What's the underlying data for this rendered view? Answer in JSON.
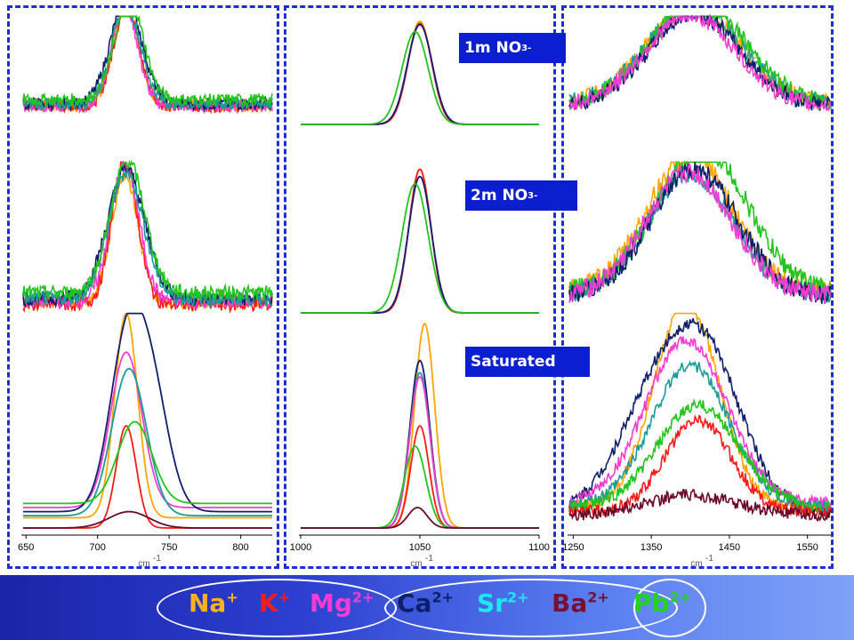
{
  "labels": {
    "box1_main": "1m NO",
    "box1_sub": "3",
    "box1_sup": "-",
    "box2_main": "2m NO",
    "box2_sub": "3",
    "box2_sup": "-",
    "box3": "Saturated"
  },
  "ions": [
    {
      "base": "Na",
      "charge": "+",
      "color": "#ffb21c"
    },
    {
      "base": "K",
      "charge": "+",
      "color": "#ff1a1a"
    },
    {
      "base": "Mg",
      "charge": "2+",
      "color": "#f33cd1"
    },
    {
      "base": "Ca",
      "charge": "2+",
      "color": "#0f1f6b"
    },
    {
      "base": "Sr",
      "charge": "2+",
      "color": "#1ee6f2"
    },
    {
      "base": "Ba",
      "charge": "2+",
      "color": "#7a1030"
    },
    {
      "base": "Pb",
      "charge": "2+",
      "color": "#22d41d"
    }
  ],
  "chart_data": [
    {
      "type": "line",
      "panel": "left",
      "xlabel": "cm",
      "xlabel_sup": "-1",
      "xlim": [
        648,
        822
      ],
      "xticks": [
        650,
        700,
        750,
        800
      ],
      "rows": [
        {
          "name": "1m NO3-",
          "series": [
            {
              "ion": "Na+",
              "color": "#ffa500",
              "center": 720,
              "width": 9,
              "amp": 1.0,
              "base": 0.18,
              "noise": 0.06
            },
            {
              "ion": "K+",
              "color": "#ff1a1a",
              "center": 720,
              "width": 9,
              "amp": 0.95,
              "base": 0.18,
              "noise": 0.06
            },
            {
              "ion": "Mg2+",
              "color": "#f33cd1",
              "center": 719,
              "width": 9,
              "amp": 0.98,
              "base": 0.18,
              "noise": 0.06
            },
            {
              "ion": "Ca2+",
              "color": "#0f1f6b",
              "center": 720,
              "width": 11,
              "amp": 1.0,
              "base": 0.2,
              "noise": 0.06
            },
            {
              "ion": "Sr2+",
              "color": "#1b9a9a",
              "center": 720,
              "width": 10,
              "amp": 0.95,
              "base": 0.2,
              "noise": 0.06
            },
            {
              "ion": "Pb2+",
              "color": "#22c41d",
              "center": 722,
              "width": 10,
              "amp": 0.98,
              "base": 0.24,
              "noise": 0.06
            }
          ]
        },
        {
          "name": "2m NO3-",
          "series": [
            {
              "ion": "Na+",
              "color": "#ffa500",
              "center": 719,
              "width": 9,
              "amp": 0.9,
              "base": 0.08,
              "noise": 0.05
            },
            {
              "ion": "K+",
              "color": "#ff1a1a",
              "center": 719,
              "width": 9,
              "amp": 1.0,
              "base": 0.06,
              "noise": 0.05
            },
            {
              "ion": "Mg2+",
              "color": "#f33cd1",
              "center": 719,
              "width": 10,
              "amp": 0.95,
              "base": 0.08,
              "noise": 0.05
            },
            {
              "ion": "Ca2+",
              "color": "#0f1f6b",
              "center": 720,
              "width": 13,
              "amp": 0.9,
              "base": 0.1,
              "noise": 0.05
            },
            {
              "ion": "Sr2+",
              "color": "#1b9a9a",
              "center": 720,
              "width": 12,
              "amp": 0.88,
              "base": 0.1,
              "noise": 0.05
            },
            {
              "ion": "Pb2+",
              "color": "#22c41d",
              "center": 721,
              "width": 12,
              "amp": 0.92,
              "base": 0.14,
              "noise": 0.05
            }
          ]
        },
        {
          "name": "Saturated",
          "series": [
            {
              "ion": "Na+",
              "color": "#ffa500",
              "center": 720,
              "width": 8,
              "amp": 1.0,
              "base": 0.05,
              "noise": 0.0
            },
            {
              "ion": "K+",
              "color": "#ff1a1a",
              "center": 720,
              "width": 7,
              "amp": 0.5,
              "base": 0.0,
              "noise": 0.0
            },
            {
              "ion": "Mg2+",
              "color": "#f33cd1",
              "center": 720,
              "width": 11,
              "amp": 0.76,
              "base": 0.1,
              "noise": 0.0
            },
            {
              "ion": "Ca2+",
              "color": "#0f1f6b",
              "center": 720,
              "width": 12,
              "amp": 0.78,
              "base": 0.08,
              "noise": 0.0,
              "center2": 738,
              "amp2": 0.55
            },
            {
              "ion": "Sr2+",
              "color": "#1b9a9a",
              "center": 722,
              "width": 12,
              "amp": 0.72,
              "base": 0.06,
              "noise": 0.0
            },
            {
              "ion": "Pb2+",
              "color": "#22c41d",
              "center": 726,
              "width": 12,
              "amp": 0.4,
              "base": 0.12,
              "noise": 0.0
            },
            {
              "ion": "Ba2+",
              "color": "#6a0a2a",
              "center": 722,
              "width": 14,
              "amp": 0.08,
              "base": 0.0,
              "noise": 0.0
            }
          ]
        }
      ]
    },
    {
      "type": "line",
      "panel": "middle",
      "xlabel": "cm",
      "xlabel_sup": "-1",
      "xlim": [
        1000,
        1100
      ],
      "xticks": [
        1000,
        1050,
        1100
      ],
      "rows": [
        {
          "name": "1m NO3-",
          "series": [
            {
              "ion": "Na+",
              "color": "#ffa500",
              "center": 1050,
              "width": 5,
              "amp": 1.0,
              "base": 0.0,
              "noise": 0.0
            },
            {
              "ion": "K+",
              "color": "#ff1a1a",
              "center": 1050,
              "width": 5,
              "amp": 0.98,
              "base": 0.0,
              "noise": 0.0
            },
            {
              "ion": "Mg2+",
              "color": "#f33cd1",
              "center": 1050,
              "width": 5.2,
              "amp": 0.97,
              "base": 0.0,
              "noise": 0.0
            },
            {
              "ion": "Ca2+",
              "color": "#0f1f6b",
              "center": 1050,
              "width": 5.2,
              "amp": 0.97,
              "base": 0.0,
              "noise": 0.0
            },
            {
              "ion": "Pb2+",
              "color": "#22c41d",
              "center": 1048,
              "width": 5.5,
              "amp": 0.9,
              "base": 0.0,
              "noise": 0.0
            }
          ]
        },
        {
          "name": "2m NO3-",
          "series": [
            {
              "ion": "Na+",
              "color": "#ffa500",
              "center": 1050,
              "width": 4.6,
              "amp": 1.0,
              "base": 0.0,
              "noise": 0.0
            },
            {
              "ion": "K+",
              "color": "#ff1a1a",
              "center": 1050,
              "width": 4.6,
              "amp": 1.0,
              "base": 0.0,
              "noise": 0.0
            },
            {
              "ion": "Mg2+",
              "color": "#f33cd1",
              "center": 1050,
              "width": 4.8,
              "amp": 0.95,
              "base": 0.0,
              "noise": 0.0
            },
            {
              "ion": "Ca2+",
              "color": "#0f1f6b",
              "center": 1050,
              "width": 4.8,
              "amp": 0.95,
              "base": 0.0,
              "noise": 0.0
            },
            {
              "ion": "Pb2+",
              "color": "#22c41d",
              "center": 1048,
              "width": 5.5,
              "amp": 0.9,
              "base": 0.0,
              "noise": 0.0
            }
          ]
        },
        {
          "name": "Saturated",
          "series": [
            {
              "ion": "Na+",
              "color": "#ffa500",
              "center": 1052,
              "width": 4.2,
              "amp": 1.0,
              "base": 0.0,
              "noise": 0.0
            },
            {
              "ion": "Ca2+",
              "color": "#0f1f6b",
              "center": 1050,
              "width": 4.2,
              "amp": 0.82,
              "base": 0.0,
              "noise": 0.0
            },
            {
              "ion": "Sr2+",
              "color": "#1b9a9a",
              "center": 1050,
              "width": 4.2,
              "amp": 0.76,
              "base": 0.0,
              "noise": 0.0
            },
            {
              "ion": "Mg2+",
              "color": "#f33cd1",
              "center": 1050,
              "width": 4.3,
              "amp": 0.74,
              "base": 0.0,
              "noise": 0.0
            },
            {
              "ion": "K+",
              "color": "#ff1a1a",
              "center": 1050,
              "width": 3.8,
              "amp": 0.5,
              "base": 0.0,
              "noise": 0.0
            },
            {
              "ion": "Pb2+",
              "color": "#22c41d",
              "center": 1048,
              "width": 4.5,
              "amp": 0.4,
              "base": 0.0,
              "noise": 0.0
            },
            {
              "ion": "Ba2+",
              "color": "#6a0a2a",
              "center": 1049,
              "width": 4,
              "amp": 0.1,
              "base": 0.0,
              "noise": 0.0
            }
          ]
        }
      ]
    },
    {
      "type": "line",
      "panel": "right",
      "xlabel": "cm",
      "xlabel_sup": "-1",
      "xlim": [
        1245,
        1580
      ],
      "xticks": [
        1250,
        1350,
        1450,
        1550
      ],
      "rows": [
        {
          "name": "1m NO3-",
          "series": [
            {
              "ion": "Na+",
              "color": "#ffa500",
              "center": 1405,
              "width": 60,
              "amp": 0.95,
              "base": 0.2,
              "noise": 0.08
            },
            {
              "ion": "Sr2+",
              "color": "#1b9a9a",
              "center": 1405,
              "width": 60,
              "amp": 0.95,
              "base": 0.2,
              "noise": 0.08
            },
            {
              "ion": "Pb2+",
              "color": "#22c41d",
              "center": 1410,
              "width": 60,
              "amp": 1.0,
              "base": 0.2,
              "noise": 0.08
            },
            {
              "ion": "Ca2+",
              "color": "#0f1f6b",
              "center": 1405,
              "width": 58,
              "amp": 0.9,
              "base": 0.18,
              "noise": 0.08
            },
            {
              "ion": "Mg2+",
              "color": "#f33cd1",
              "center": 1400,
              "width": 58,
              "amp": 0.88,
              "base": 0.18,
              "noise": 0.08
            }
          ]
        },
        {
          "name": "2m NO3-",
          "series": [
            {
              "ion": "Na+",
              "color": "#ffa500",
              "center": 1400,
              "width": 55,
              "amp": 0.95,
              "base": 0.15,
              "noise": 0.07
            },
            {
              "ion": "Pb2+",
              "color": "#22c41d",
              "center": 1415,
              "width": 58,
              "amp": 1.0,
              "base": 0.15,
              "noise": 0.07
            },
            {
              "ion": "Sr2+",
              "color": "#1b9a9a",
              "center": 1400,
              "width": 55,
              "amp": 0.85,
              "base": 0.12,
              "noise": 0.07
            },
            {
              "ion": "Ca2+",
              "color": "#0f1f6b",
              "center": 1405,
              "width": 55,
              "amp": 0.88,
              "base": 0.12,
              "noise": 0.07
            },
            {
              "ion": "Mg2+",
              "color": "#f33cd1",
              "center": 1398,
              "width": 55,
              "amp": 0.86,
              "base": 0.12,
              "noise": 0.07
            }
          ]
        },
        {
          "name": "Saturated",
          "series": [
            {
              "ion": "Na+",
              "color": "#ffa500",
              "center": 1395,
              "width": 42,
              "amp": 1.0,
              "base": 0.1,
              "noise": 0.03
            },
            {
              "ion": "Ca2+",
              "color": "#0f1f6b",
              "center": 1420,
              "width": 48,
              "amp": 0.72,
              "base": 0.08,
              "noise": 0.03,
              "center2": 1350,
              "amp2": 0.45
            },
            {
              "ion": "Mg2+",
              "color": "#f33cd1",
              "center": 1395,
              "width": 52,
              "amp": 0.8,
              "base": 0.12,
              "noise": 0.03
            },
            {
              "ion": "Sr2+",
              "color": "#1b9a9a",
              "center": 1400,
              "width": 50,
              "amp": 0.7,
              "base": 0.1,
              "noise": 0.03
            },
            {
              "ion": "Pb2+",
              "color": "#22c41d",
              "center": 1410,
              "width": 52,
              "amp": 0.5,
              "base": 0.1,
              "noise": 0.03
            },
            {
              "ion": "K+",
              "color": "#ff1a1a",
              "center": 1410,
              "width": 42,
              "amp": 0.45,
              "base": 0.08,
              "noise": 0.03
            },
            {
              "ion": "Ba2+",
              "color": "#6a0a2a",
              "center": 1400,
              "width": 60,
              "amp": 0.1,
              "base": 0.06,
              "noise": 0.03
            }
          ]
        }
      ]
    }
  ]
}
